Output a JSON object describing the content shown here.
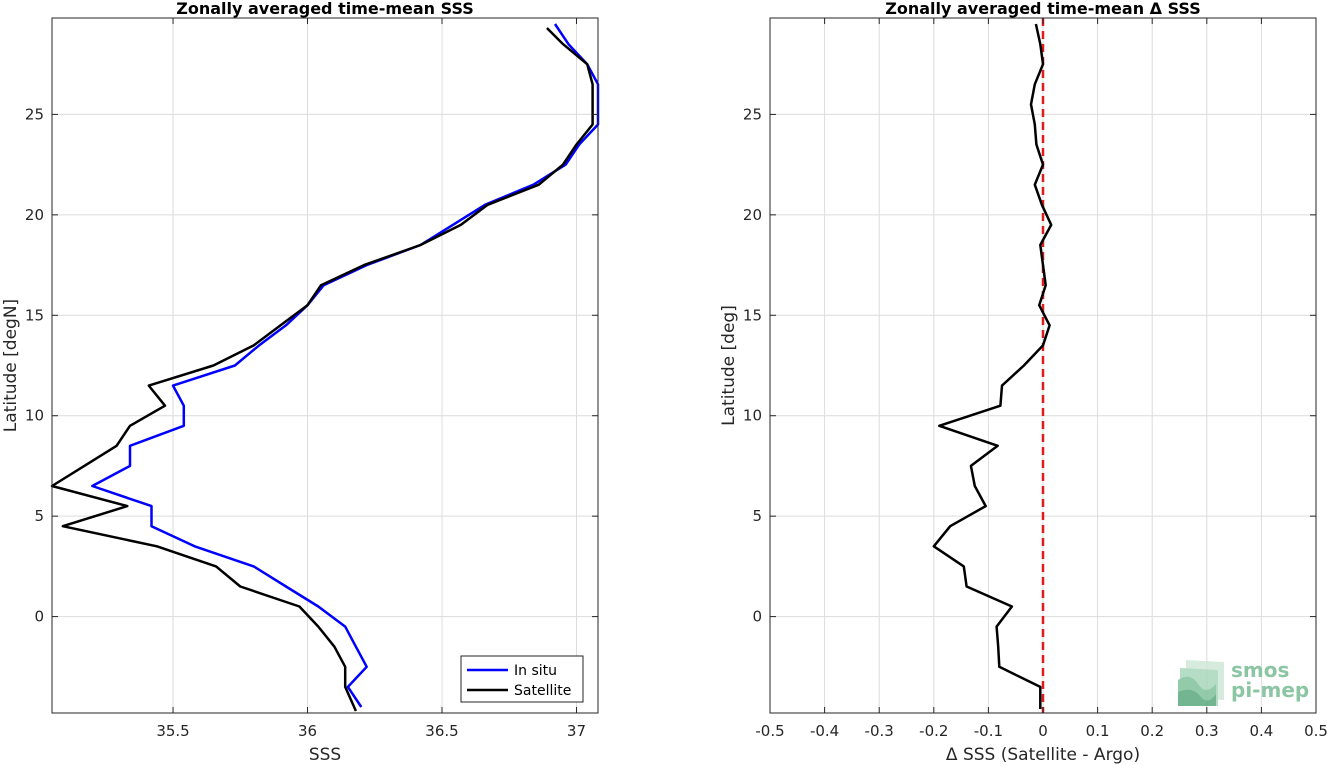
{
  "colors": {
    "in_situ": "#0000ff",
    "satellite": "#000000",
    "zero_line": "#e01b1b",
    "grid": "#dcdcdc",
    "logo": "#8cc5a4"
  },
  "logo": {
    "line1": "smos",
    "line2": "pi-mep"
  },
  "chart_data": [
    {
      "type": "line",
      "title": "Zonally averaged time-mean SSS",
      "xlabel": "SSS",
      "ylabel": "Latitude [degN]",
      "xlim": [
        35.05,
        37.08
      ],
      "ylim": [
        -4.8,
        29.8
      ],
      "xticks": [
        35.5,
        36,
        36.5,
        37
      ],
      "xtick_labels": [
        "35.5",
        "36",
        "36.5",
        "37"
      ],
      "yticks": [
        0,
        5,
        10,
        15,
        20,
        25
      ],
      "ytick_labels": [
        "0",
        "5",
        "10",
        "15",
        "20",
        "25"
      ],
      "grid": true,
      "legend": "bottom-right",
      "series": [
        {
          "name": "In situ",
          "color": "#0000ff",
          "points": [
            [
              36.2,
              -4.5
            ],
            [
              36.15,
              -3.5
            ],
            [
              36.22,
              -2.5
            ],
            [
              36.18,
              -1.5
            ],
            [
              36.14,
              -0.5
            ],
            [
              36.04,
              0.5
            ],
            [
              35.92,
              1.5
            ],
            [
              35.8,
              2.5
            ],
            [
              35.58,
              3.5
            ],
            [
              35.42,
              4.5
            ],
            [
              35.42,
              5.5
            ],
            [
              35.2,
              6.5
            ],
            [
              35.34,
              7.5
            ],
            [
              35.34,
              8.5
            ],
            [
              35.54,
              9.5
            ],
            [
              35.54,
              10.5
            ],
            [
              35.5,
              11.5
            ],
            [
              35.73,
              12.5
            ],
            [
              35.82,
              13.5
            ],
            [
              35.92,
              14.5
            ],
            [
              36.0,
              15.5
            ],
            [
              36.06,
              16.5
            ],
            [
              36.22,
              17.5
            ],
            [
              36.42,
              18.5
            ],
            [
              36.54,
              19.5
            ],
            [
              36.66,
              20.5
            ],
            [
              36.84,
              21.5
            ],
            [
              36.96,
              22.5
            ],
            [
              37.01,
              23.5
            ],
            [
              37.08,
              24.5
            ],
            [
              37.08,
              25.5
            ],
            [
              37.08,
              26.5
            ],
            [
              37.04,
              27.5
            ],
            [
              36.97,
              28.5
            ],
            [
              36.92,
              29.5
            ]
          ]
        },
        {
          "name": "Satellite",
          "color": "#000000",
          "points": [
            [
              36.18,
              -4.7
            ],
            [
              36.14,
              -3.5
            ],
            [
              36.14,
              -2.5
            ],
            [
              36.1,
              -1.5
            ],
            [
              36.04,
              -0.5
            ],
            [
              35.97,
              0.5
            ],
            [
              35.75,
              1.5
            ],
            [
              35.66,
              2.5
            ],
            [
              35.44,
              3.5
            ],
            [
              35.09,
              4.5
            ],
            [
              35.33,
              5.5
            ],
            [
              35.05,
              6.5
            ],
            [
              35.17,
              7.5
            ],
            [
              35.29,
              8.5
            ],
            [
              35.34,
              9.5
            ],
            [
              35.47,
              10.5
            ],
            [
              35.41,
              11.5
            ],
            [
              35.65,
              12.5
            ],
            [
              35.8,
              13.5
            ],
            [
              35.9,
              14.5
            ],
            [
              36.0,
              15.5
            ],
            [
              36.05,
              16.5
            ],
            [
              36.21,
              17.5
            ],
            [
              36.42,
              18.5
            ],
            [
              36.57,
              19.5
            ],
            [
              36.67,
              20.5
            ],
            [
              36.86,
              21.5
            ],
            [
              36.95,
              22.5
            ],
            [
              37.0,
              23.5
            ],
            [
              37.06,
              24.5
            ],
            [
              37.06,
              25.5
            ],
            [
              37.06,
              26.5
            ],
            [
              37.04,
              27.5
            ],
            [
              36.95,
              28.5
            ],
            [
              36.89,
              29.3
            ]
          ]
        }
      ]
    },
    {
      "type": "line",
      "title": "Zonally averaged time-mean Δ SSS",
      "xlabel": "Δ SSS (Satellite - Argo)",
      "ylabel": "Latitude [deg]",
      "xlim": [
        -0.5,
        0.5
      ],
      "ylim": [
        -4.8,
        29.8
      ],
      "xticks": [
        -0.5,
        -0.4,
        -0.3,
        -0.2,
        -0.1,
        0,
        0.1,
        0.2,
        0.3,
        0.4,
        0.5
      ],
      "xtick_labels": [
        "-0.5",
        "-0.4",
        "-0.3",
        "-0.2",
        "-0.1",
        "0",
        "0.1",
        "0.2",
        "0.3",
        "0.4",
        "0.5"
      ],
      "yticks": [
        0,
        5,
        10,
        15,
        20,
        25
      ],
      "ytick_labels": [
        "0",
        "5",
        "10",
        "15",
        "20",
        "25"
      ],
      "grid": true,
      "reference_line": {
        "x": 0,
        "color": "#e01b1b",
        "style": "dashed"
      },
      "series": [
        {
          "color": "#000000",
          "points": [
            [
              -0.005,
              -4.6
            ],
            [
              -0.005,
              -3.5
            ],
            [
              -0.08,
              -2.5
            ],
            [
              -0.082,
              -1.5
            ],
            [
              -0.085,
              -0.5
            ],
            [
              -0.057,
              0.5
            ],
            [
              -0.14,
              1.5
            ],
            [
              -0.145,
              2.5
            ],
            [
              -0.2,
              3.5
            ],
            [
              -0.17,
              4.5
            ],
            [
              -0.105,
              5.5
            ],
            [
              -0.125,
              6.5
            ],
            [
              -0.132,
              7.5
            ],
            [
              -0.083,
              8.5
            ],
            [
              -0.19,
              9.5
            ],
            [
              -0.078,
              10.5
            ],
            [
              -0.075,
              11.5
            ],
            [
              -0.035,
              12.5
            ],
            [
              0.0,
              13.5
            ],
            [
              0.012,
              14.5
            ],
            [
              -0.007,
              15.5
            ],
            [
              0.005,
              16.5
            ],
            [
              0.0,
              17.5
            ],
            [
              -0.005,
              18.5
            ],
            [
              0.015,
              19.5
            ],
            [
              -0.002,
              20.5
            ],
            [
              -0.015,
              21.5
            ],
            [
              0.0,
              22.5
            ],
            [
              -0.012,
              23.5
            ],
            [
              -0.015,
              24.5
            ],
            [
              -0.022,
              25.5
            ],
            [
              -0.015,
              26.5
            ],
            [
              0.0,
              27.5
            ],
            [
              -0.005,
              28.5
            ],
            [
              -0.013,
              29.5
            ]
          ]
        }
      ]
    }
  ]
}
